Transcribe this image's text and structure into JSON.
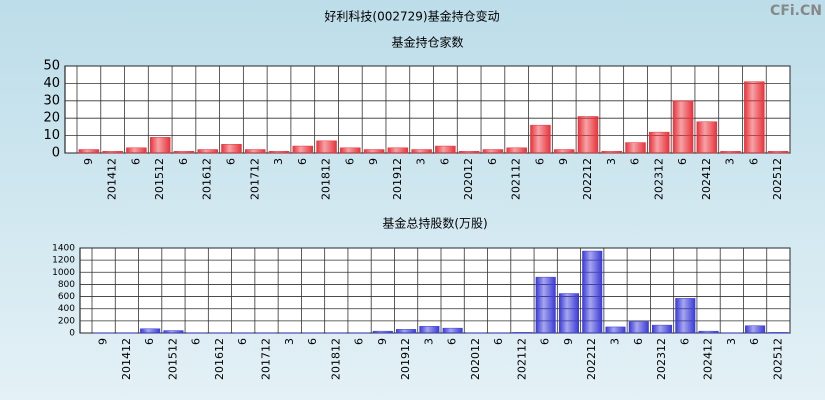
{
  "header": {
    "title": "好利科技(002729)基金持仓变动",
    "watermark": "CFi.CN"
  },
  "chart_data": [
    {
      "type": "bar",
      "title": "基金持仓家数",
      "color": "#e8323a",
      "grid": true,
      "categories": [
        "9",
        "201412",
        "6",
        "201512",
        "6",
        "201612",
        "6",
        "201712",
        "3",
        "6",
        "201812",
        "6",
        "9",
        "201912",
        "3",
        "6",
        "202012",
        "6",
        "202112",
        "6",
        "9",
        "202212",
        "3",
        "6",
        "202312",
        "6",
        "202412",
        "3",
        "6",
        "202512"
      ],
      "values": [
        2,
        1,
        3,
        9,
        1,
        2,
        5,
        2,
        1,
        4,
        7,
        3,
        2,
        3,
        2,
        4,
        1,
        2,
        3,
        16,
        2,
        21,
        1,
        6,
        12,
        30,
        18,
        1,
        41,
        1
      ],
      "ylim": [
        0,
        50
      ],
      "yticks": [
        0,
        10,
        20,
        30,
        40,
        50
      ]
    },
    {
      "type": "bar",
      "title": "基金总持股数(万股)",
      "color": "#3a3ad8",
      "grid": true,
      "categories": [
        "9",
        "201412",
        "6",
        "201512",
        "6",
        "201612",
        "6",
        "201712",
        "3",
        "6",
        "201812",
        "6",
        "9",
        "201912",
        "3",
        "6",
        "202012",
        "6",
        "202112",
        "6",
        "9",
        "202212",
        "3",
        "6",
        "202312",
        "6",
        "202412",
        "3",
        "6",
        "202512"
      ],
      "values": [
        5,
        5,
        70,
        40,
        5,
        5,
        5,
        5,
        5,
        5,
        5,
        5,
        30,
        60,
        110,
        80,
        5,
        5,
        10,
        920,
        650,
        1350,
        100,
        190,
        130,
        570,
        30,
        5,
        120,
        10
      ],
      "ylim": [
        0,
        1400
      ],
      "yticks": [
        0,
        200,
        400,
        600,
        800,
        1000,
        1200,
        1400
      ]
    }
  ]
}
